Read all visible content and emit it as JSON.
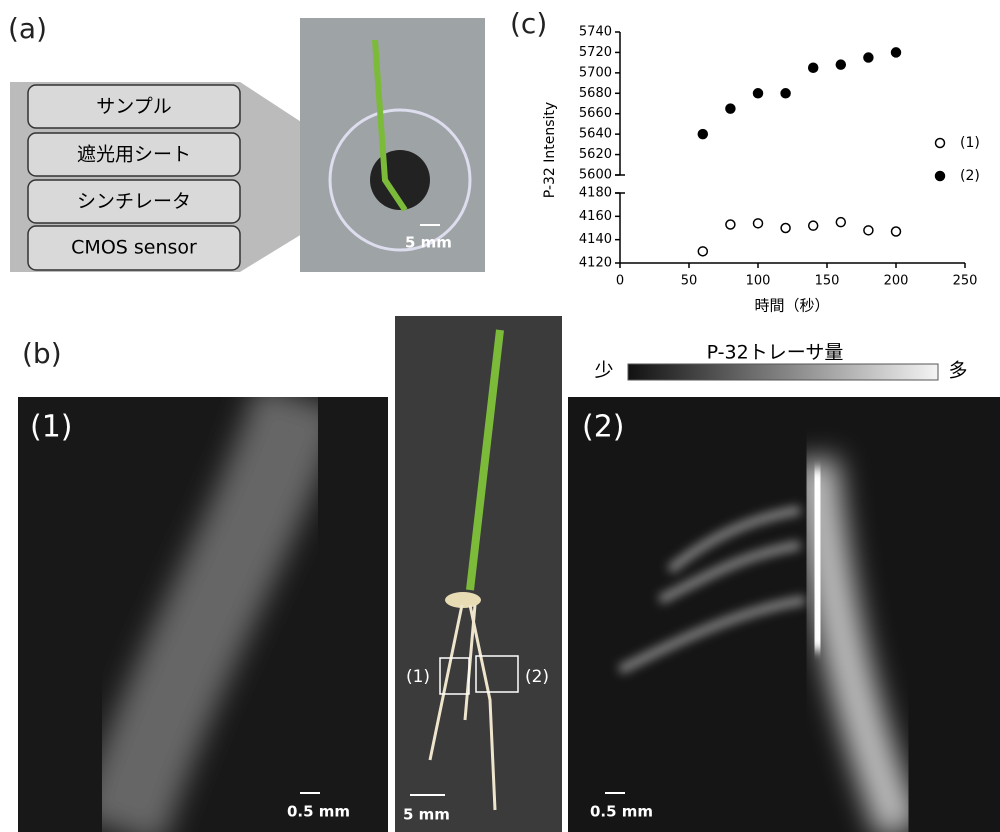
{
  "panel_a": {
    "label": "(a)",
    "layers": [
      "サンプル",
      "遮光用シート",
      "シンチレータ",
      "CMOS sensor"
    ],
    "scale": "5 mm"
  },
  "panel_b": {
    "label": "(b)",
    "image_1": {
      "label": "(1)",
      "scale": "0.5 mm"
    },
    "photo": {
      "scale": "5 mm",
      "roi_labels": [
        "(1)",
        "(2)"
      ]
    },
    "image_2": {
      "label": "(2)",
      "scale": "0.5 mm"
    },
    "colorbar": {
      "title": "P-32トレーサ量",
      "min_label": "少",
      "max_label": "多"
    }
  },
  "chart_data": {
    "type": "scatter",
    "panel_label": "(c)",
    "xlabel": "時間（秒）",
    "ylabel": "P-32 Intensity",
    "x": [
      60,
      80,
      100,
      120,
      140,
      160,
      180,
      200
    ],
    "series": [
      {
        "name": "(1)",
        "color": "#000000",
        "filled": false,
        "values": [
          4130,
          4153,
          4154,
          4150,
          4152,
          4155,
          4148,
          4147
        ]
      },
      {
        "name": "(2)",
        "color": "#000000",
        "filled": true,
        "values": [
          5640,
          5665,
          5680,
          5680,
          5705,
          5708,
          5715,
          5720
        ]
      }
    ],
    "xlim": [
      0,
      250
    ],
    "xticks": [
      0,
      50,
      100,
      150,
      200,
      250
    ],
    "ylim_lower": [
      4120,
      4180
    ],
    "yticks_lower": [
      4120,
      4140,
      4160,
      4180
    ],
    "ylim_upper": [
      5600,
      5740
    ],
    "yticks_upper": [
      5600,
      5620,
      5640,
      5660,
      5680,
      5700,
      5720,
      5740
    ]
  }
}
